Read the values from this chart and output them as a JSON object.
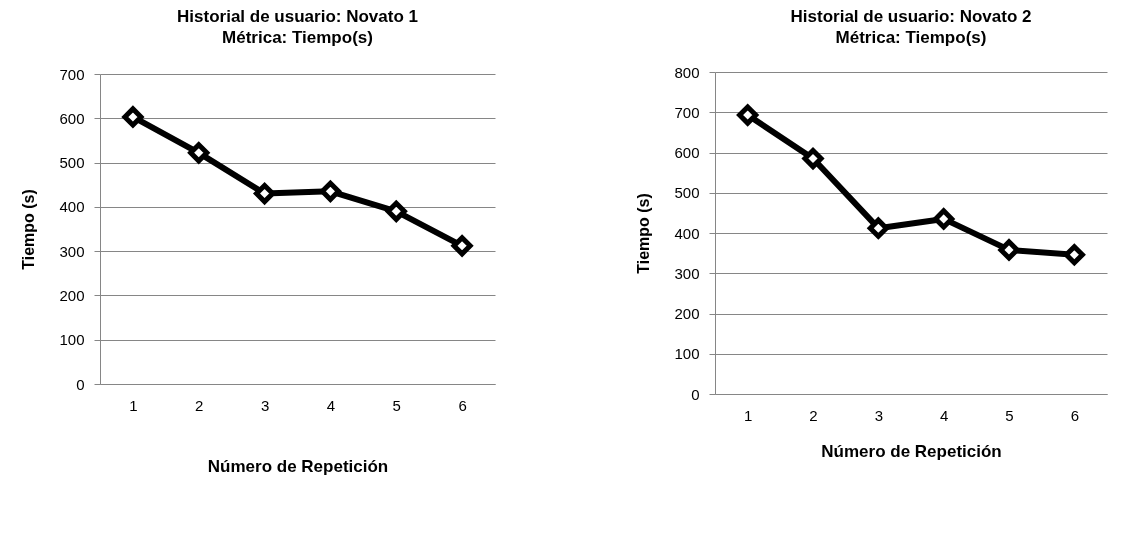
{
  "chart_data": [
    {
      "type": "line",
      "title": "Historial de usuario: Novato 1\nMétrica: Tiempo(s)",
      "xlabel": "Número de Repetición",
      "ylabel": "Tiempo (s)",
      "categories": [
        "1",
        "2",
        "3",
        "4",
        "5",
        "6"
      ],
      "series": [
        {
          "color": "#000000",
          "values": [
            603,
            522,
            430,
            435,
            390,
            312
          ]
        }
      ],
      "ylim": [
        0,
        700
      ],
      "yticks": [
        0,
        100,
        200,
        300,
        400,
        500,
        600,
        700
      ],
      "grid": "y",
      "marker": "diamond",
      "line_style": "solid"
    },
    {
      "type": "line",
      "title": "Historial de usuario: Novato 2\nMétrica: Tiempo(s)",
      "xlabel": "Número de Repetición",
      "ylabel": "Tiempo (s)",
      "categories": [
        "1",
        "2",
        "3",
        "4",
        "5",
        "6"
      ],
      "series": [
        {
          "color": "#000000",
          "values": [
            693,
            585,
            412,
            435,
            358,
            346
          ]
        }
      ],
      "ylim": [
        0,
        800
      ],
      "yticks": [
        0,
        100,
        200,
        300,
        400,
        500,
        600,
        700,
        800
      ],
      "grid": "y",
      "marker": "diamond",
      "line_style": "solid"
    }
  ]
}
